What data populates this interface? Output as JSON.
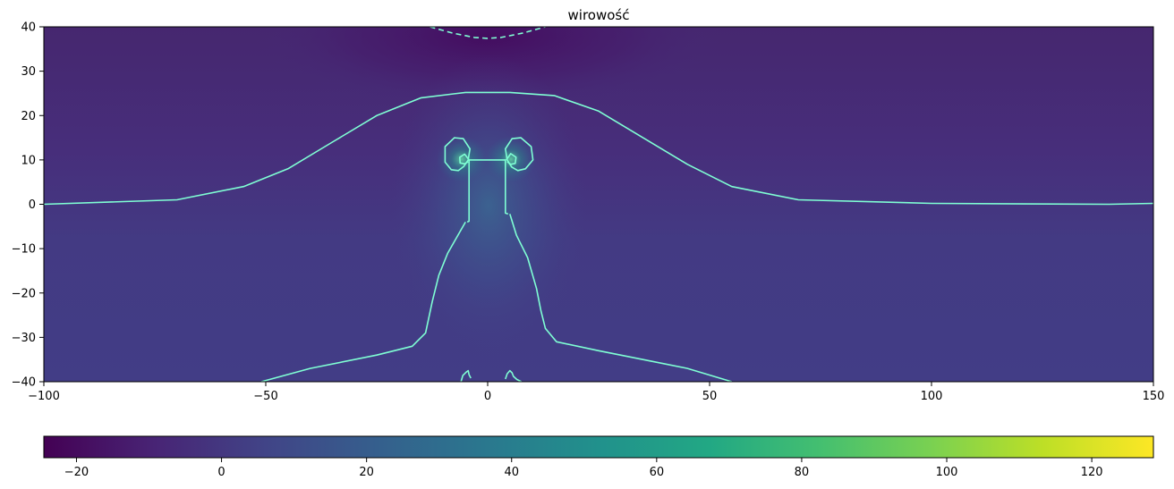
{
  "chart_data": {
    "type": "heatmap",
    "title": "wirowość",
    "xlabel": "",
    "ylabel": "",
    "xlim": [
      -100,
      150
    ],
    "ylim": [
      -40,
      40
    ],
    "x_ticks": [
      -100,
      -50,
      0,
      50,
      100,
      150
    ],
    "y_ticks": [
      -40,
      -30,
      -20,
      -10,
      0,
      10,
      20,
      30,
      40
    ],
    "colormap": "viridis",
    "colorbar": {
      "orientation": "horizontal",
      "placement": "bottom",
      "range": [
        -24.5,
        128.5
      ],
      "ticks": [
        -20,
        0,
        20,
        40,
        60,
        80,
        100,
        120
      ]
    },
    "field_summary": {
      "background_value": 0,
      "min_region": {
        "x": 0,
        "y": 38,
        "value": -22
      },
      "max_region": {
        "x": 5,
        "y": 10,
        "value": 30
      }
    },
    "contours": [
      {
        "style": "solid",
        "color": "#7fffd4",
        "kind": "wake/envelope",
        "points": [
          [
            -100,
            0
          ],
          [
            -70,
            1
          ],
          [
            -55,
            4
          ],
          [
            -45,
            8
          ],
          [
            -35,
            14
          ],
          [
            -25,
            20
          ],
          [
            -15,
            24
          ],
          [
            -5,
            25.2
          ],
          [
            5,
            25.2
          ],
          [
            15,
            24.5
          ],
          [
            25,
            21
          ],
          [
            35,
            15
          ],
          [
            45,
            9
          ],
          [
            55,
            4
          ],
          [
            70,
            1
          ],
          [
            100,
            0.2
          ],
          [
            140,
            0
          ],
          [
            150,
            0.2
          ]
        ]
      },
      {
        "style": "dashed",
        "color": "#7fffd4",
        "kind": "negative",
        "points": [
          [
            -13,
            40
          ],
          [
            -8,
            38.6
          ],
          [
            -3,
            37.6
          ],
          [
            0,
            37.4
          ],
          [
            3,
            37.6
          ],
          [
            8,
            38.6
          ],
          [
            13,
            40
          ]
        ]
      },
      {
        "style": "solid",
        "color": "#7fffd4",
        "kind": "body outline",
        "points": [
          [
            -4.6,
            -4
          ],
          [
            -4.2,
            -3.8
          ],
          [
            -4.2,
            10
          ],
          [
            4,
            10
          ],
          [
            4,
            -2
          ],
          [
            4.6,
            -2.2
          ]
        ]
      },
      {
        "style": "solid",
        "color": "#7fffd4",
        "kind": "left leg",
        "points": [
          [
            -51,
            -40
          ],
          [
            -40,
            -37
          ],
          [
            -25,
            -34
          ],
          [
            -17,
            -32
          ],
          [
            -14,
            -29
          ],
          [
            -12.5,
            -22
          ],
          [
            -11,
            -16
          ],
          [
            -9,
            -11
          ],
          [
            -5,
            -4
          ]
        ]
      },
      {
        "style": "solid",
        "color": "#7fffd4",
        "kind": "right leg",
        "points": [
          [
            5,
            -2.2
          ],
          [
            6.5,
            -7
          ],
          [
            9,
            -12
          ],
          [
            11,
            -19
          ],
          [
            12,
            -24
          ],
          [
            13,
            -28
          ],
          [
            15.5,
            -31
          ],
          [
            25,
            -33
          ],
          [
            35,
            -35
          ],
          [
            45,
            -37
          ],
          [
            55,
            -40
          ]
        ]
      },
      {
        "style": "solid",
        "color": "#7fffd4",
        "kind": "left vortex outer",
        "points": [
          [
            -4.4,
            10
          ],
          [
            -4,
            12.5
          ],
          [
            -5.5,
            14.8
          ],
          [
            -7.5,
            15
          ],
          [
            -9.6,
            13
          ],
          [
            -9.6,
            9.5
          ],
          [
            -8.2,
            7.8
          ],
          [
            -6.6,
            7.6
          ],
          [
            -5.4,
            8.5
          ],
          [
            -4.4,
            10
          ]
        ]
      },
      {
        "style": "solid",
        "color": "#7fffd4",
        "kind": "left vortex inner",
        "points": [
          [
            -4.2,
            10
          ],
          [
            -5.2,
            11.3
          ],
          [
            -6.3,
            10.6
          ],
          [
            -6.2,
            9.3
          ],
          [
            -5.2,
            9.1
          ],
          [
            -4.4,
            9.6
          ]
        ]
      },
      {
        "style": "solid",
        "color": "#7fffd4",
        "kind": "right vortex outer",
        "points": [
          [
            4.4,
            10
          ],
          [
            4,
            12.5
          ],
          [
            5.5,
            14.8
          ],
          [
            7.5,
            15
          ],
          [
            9.8,
            13
          ],
          [
            10.2,
            10
          ],
          [
            8.5,
            8
          ],
          [
            6.8,
            7.6
          ],
          [
            5.4,
            8.4
          ],
          [
            4.4,
            10
          ]
        ]
      },
      {
        "style": "solid",
        "color": "#7fffd4",
        "kind": "right vortex inner",
        "points": [
          [
            4.2,
            10
          ],
          [
            5.2,
            11.4
          ],
          [
            6.4,
            10.6
          ],
          [
            6.2,
            9.2
          ],
          [
            5.2,
            9
          ],
          [
            4.4,
            9.6
          ]
        ]
      },
      {
        "style": "solid",
        "color": "#7fffd4",
        "kind": "bottom left hook",
        "points": [
          [
            -6,
            -40
          ],
          [
            -5.6,
            -38.6
          ],
          [
            -4.8,
            -37.8
          ],
          [
            -4.4,
            -37.5
          ],
          [
            -4.2,
            -38.4
          ],
          [
            -3.8,
            -39.2
          ]
        ]
      },
      {
        "style": "solid",
        "color": "#7fffd4",
        "kind": "bottom right hook",
        "points": [
          [
            4,
            -39.4
          ],
          [
            4.4,
            -38.2
          ],
          [
            5,
            -37.5
          ],
          [
            5.5,
            -38
          ],
          [
            5.8,
            -38.8
          ],
          [
            6.6,
            -39.5
          ],
          [
            7.6,
            -40
          ]
        ]
      }
    ]
  }
}
